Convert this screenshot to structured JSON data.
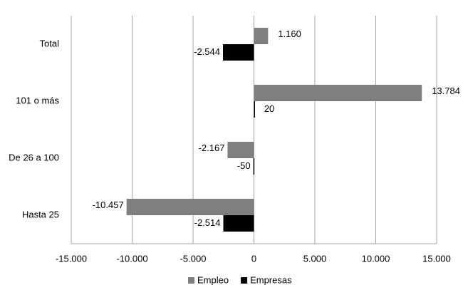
{
  "chart_data": {
    "type": "hbar",
    "categories": [
      "Total",
      "101 o más",
      "De 26 a 100",
      "Hasta 25"
    ],
    "series": [
      {
        "name": "Empleo",
        "color": "#7f7f7f",
        "values": [
          1160,
          13784,
          -2167,
          -10457
        ],
        "value_labels": [
          "1.160",
          "13.784",
          "-2.167",
          "-10.457"
        ]
      },
      {
        "name": "Empresas",
        "color": "#000000",
        "values": [
          -2544,
          20,
          -50,
          -2514
        ],
        "value_labels": [
          "-2.544",
          "20",
          "-50",
          "-2.514"
        ]
      }
    ],
    "xlim": [
      -15000,
      15000
    ],
    "xticks": [
      {
        "value": -15000,
        "label": "-15.000"
      },
      {
        "value": -10000,
        "label": "-10.000"
      },
      {
        "value": -5000,
        "label": "-5.000"
      },
      0,
      {
        "value": 5000,
        "label": "5.000"
      },
      {
        "value": 10000,
        "label": "10.000"
      },
      {
        "value": 15000,
        "label": "15.000"
      }
    ],
    "grid": true,
    "legend": "bottom"
  }
}
